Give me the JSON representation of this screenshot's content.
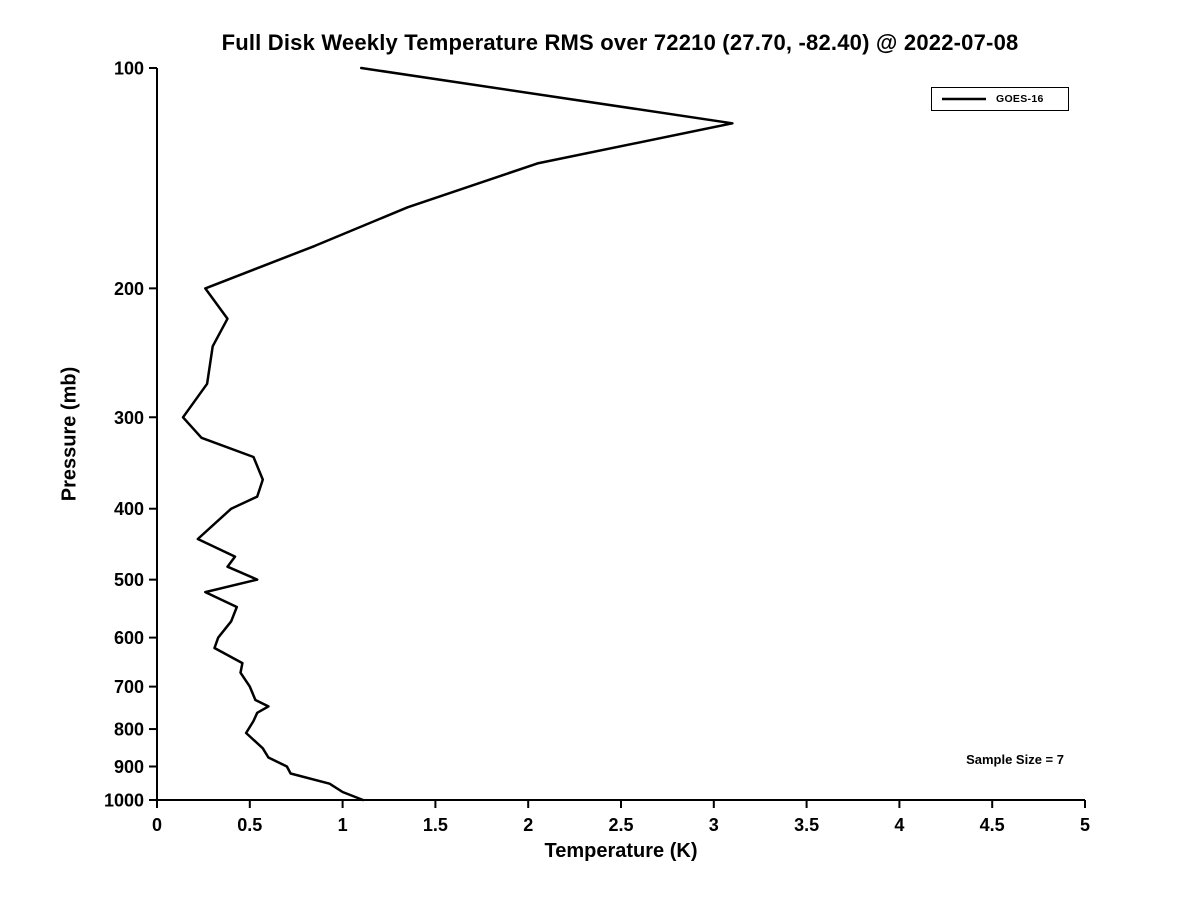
{
  "chart_data": {
    "type": "line",
    "title": "Full Disk Weekly Temperature RMS over 72210 (27.70, -82.40) @ 2022-07-08",
    "xlabel": "Temperature (K)",
    "ylabel": "Pressure (mb)",
    "xlim": [
      0,
      5
    ],
    "xticks": [
      0,
      0.5,
      1,
      1.5,
      2,
      2.5,
      3,
      3.5,
      4,
      4.5,
      5
    ],
    "ylim": [
      100,
      1000
    ],
    "yticks": [
      100,
      200,
      300,
      400,
      500,
      600,
      700,
      800,
      900,
      1000
    ],
    "yscale": "log",
    "y_direction": "increasing-downward",
    "grid": false,
    "legend_position": "top-right",
    "axis_color": "#000000",
    "background_color": "#ffffff",
    "series": [
      {
        "name": "GOES-16",
        "color": "#000000",
        "line_width": 2.5,
        "points_format": "[pressure_mb, temperature_rms_K]",
        "points": [
          [
            100,
            1.1
          ],
          [
            119,
            3.1
          ],
          [
            135,
            2.05
          ],
          [
            155,
            1.35
          ],
          [
            175,
            0.85
          ],
          [
            200,
            0.26
          ],
          [
            220,
            0.38
          ],
          [
            240,
            0.3
          ],
          [
            270,
            0.27
          ],
          [
            300,
            0.14
          ],
          [
            320,
            0.24
          ],
          [
            340,
            0.52
          ],
          [
            365,
            0.57
          ],
          [
            385,
            0.54
          ],
          [
            400,
            0.4
          ],
          [
            440,
            0.22
          ],
          [
            465,
            0.42
          ],
          [
            480,
            0.38
          ],
          [
            500,
            0.54
          ],
          [
            520,
            0.26
          ],
          [
            545,
            0.43
          ],
          [
            570,
            0.4
          ],
          [
            600,
            0.33
          ],
          [
            620,
            0.31
          ],
          [
            650,
            0.46
          ],
          [
            670,
            0.45
          ],
          [
            700,
            0.5
          ],
          [
            730,
            0.53
          ],
          [
            745,
            0.6
          ],
          [
            760,
            0.54
          ],
          [
            780,
            0.52
          ],
          [
            810,
            0.48
          ],
          [
            850,
            0.57
          ],
          [
            875,
            0.6
          ],
          [
            900,
            0.7
          ],
          [
            920,
            0.72
          ],
          [
            950,
            0.93
          ],
          [
            975,
            1.0
          ],
          [
            1000,
            1.11
          ]
        ]
      }
    ],
    "annotations": [
      {
        "text": "Sample Size = 7",
        "position": "bottom-right"
      }
    ]
  }
}
